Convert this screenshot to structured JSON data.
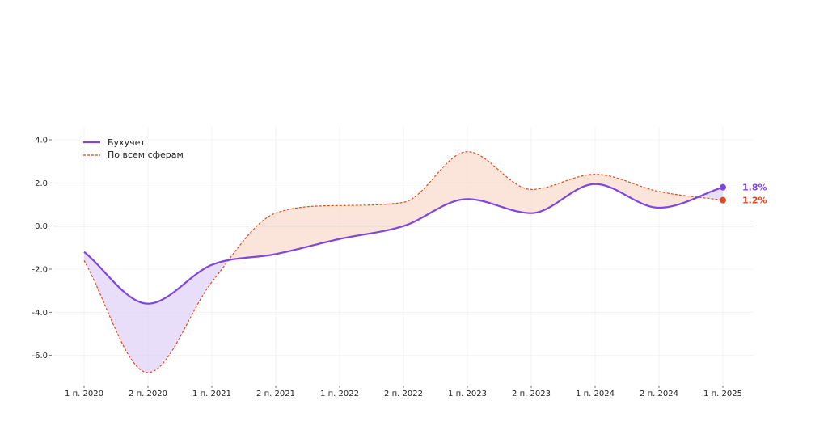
{
  "chart_data": {
    "type": "line",
    "title": "",
    "xlabel": "",
    "ylabel": "",
    "categories": [
      "1 п. 2020",
      "2 п. 2020",
      "1 п. 2021",
      "2 п. 2021",
      "1 п. 2022",
      "2 п. 2022",
      "1 п. 2023",
      "2 п. 2023",
      "1 п. 2024",
      "2 п. 2024",
      "1 п. 2025"
    ],
    "ylim": [
      -7.4,
      4.6
    ],
    "yticks": [
      4.0,
      2.0,
      0.0,
      -2.0,
      -4.0,
      -6.0
    ],
    "ytick_labels": [
      "4.0",
      "2.0",
      "0.0",
      "-2.0",
      "-4.0",
      "-6.0"
    ],
    "grid": true,
    "zero_line": true,
    "legend_position": "top-left",
    "series": [
      {
        "name": "Бухучет",
        "style": "solid",
        "color": "#7f45e0",
        "values": [
          -1.2,
          -3.6,
          -1.8,
          -1.3,
          -0.6,
          0.0,
          1.25,
          0.6,
          1.95,
          0.85,
          1.8
        ],
        "end_label": "1.8%"
      },
      {
        "name": "По всем сферам",
        "style": "dashed",
        "color": "#e04a1b",
        "values": [
          -1.6,
          -6.8,
          -2.6,
          0.6,
          0.95,
          1.1,
          3.45,
          1.7,
          2.4,
          1.6,
          1.2
        ],
        "end_label": "1.2%"
      }
    ],
    "fill_colors": {
      "first_above": "#f9dccf",
      "second_above": "#e0d3f7"
    }
  }
}
